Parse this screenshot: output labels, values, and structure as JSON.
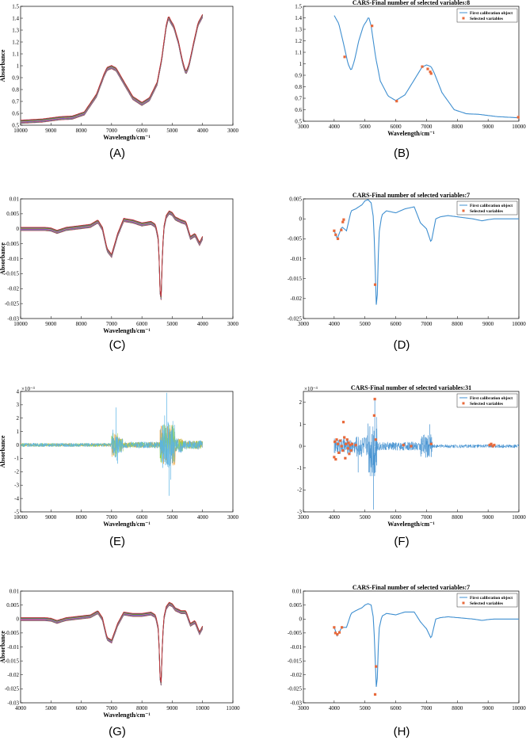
{
  "chart_data": [
    {
      "label": "(A)",
      "type": "line",
      "kind": "multi-spectra",
      "xlabel": "Wavelength/cm⁻¹",
      "ylabel": "Absorbance",
      "title": "",
      "xlim": [
        10000,
        3000
      ],
      "ylim": [
        0.5,
        1.5
      ],
      "xticks": [
        10000,
        9000,
        8000,
        7000,
        6000,
        5000,
        4000,
        3000
      ],
      "yticks": [
        0.5,
        0.6,
        0.7,
        0.8,
        0.9,
        1,
        1.1,
        1.2,
        1.3,
        1.4,
        1.5
      ],
      "x": [
        10000,
        9300,
        8700,
        8300,
        7900,
        7500,
        7250,
        7150,
        7000,
        6850,
        6600,
        6300,
        6000,
        5750,
        5500,
        5350,
        5200,
        5120,
        5050,
        4950,
        4800,
        4650,
        4550,
        4450,
        4300,
        4150,
        4000
      ],
      "values": [
        0.53,
        0.54,
        0.56,
        0.565,
        0.6,
        0.75,
        0.92,
        0.975,
        0.99,
        0.97,
        0.86,
        0.73,
        0.68,
        0.72,
        0.85,
        1.05,
        1.33,
        1.41,
        1.37,
        1.33,
        1.2,
        1.02,
        0.94,
        1.0,
        1.18,
        1.35,
        1.42
      ]
    },
    {
      "label": "(B)",
      "type": "line",
      "kind": "spectrum-selected",
      "title": "CARS-Final number of selected variables:8",
      "xlabel": "Wavelength/cm⁻¹",
      "ylabel": "",
      "xlim": [
        3000,
        10000
      ],
      "ylim": [
        0.5,
        1.5
      ],
      "xticks": [
        3000,
        4000,
        5000,
        6000,
        7000,
        8000,
        9000,
        10000
      ],
      "yticks": [
        0.5,
        0.6,
        0.7,
        0.8,
        0.9,
        1,
        1.1,
        1.2,
        1.3,
        1.4,
        1.5
      ],
      "legend": [
        "First calibration object",
        "Selected variables"
      ],
      "x": [
        4000,
        4150,
        4300,
        4450,
        4550,
        4650,
        4800,
        4950,
        5050,
        5120,
        5200,
        5350,
        5500,
        5750,
        6000,
        6300,
        6600,
        6850,
        7000,
        7150,
        7250,
        7500,
        7900,
        8300,
        8700,
        9300,
        10000
      ],
      "values": [
        1.42,
        1.35,
        1.18,
        1.0,
        0.94,
        1.02,
        1.2,
        1.33,
        1.37,
        1.41,
        1.33,
        1.05,
        0.85,
        0.72,
        0.68,
        0.73,
        0.86,
        0.97,
        0.99,
        0.975,
        0.92,
        0.75,
        0.6,
        0.565,
        0.56,
        0.54,
        0.53
      ],
      "selected": [
        [
          4340,
          1.06
        ],
        [
          5230,
          1.33
        ],
        [
          6030,
          0.675
        ],
        [
          6860,
          0.975
        ],
        [
          7040,
          0.955
        ],
        [
          7120,
          0.93
        ],
        [
          7150,
          0.915
        ],
        [
          9980,
          0.535
        ]
      ]
    },
    {
      "label": "(C)",
      "type": "line",
      "kind": "multi-spectra",
      "xlabel": "Wavelength/cm⁻¹",
      "ylabel": "Absorbance",
      "title": "",
      "xlim": [
        10000,
        3000
      ],
      "ylim": [
        -0.03,
        0.01
      ],
      "xticks": [
        10000,
        9000,
        8000,
        7000,
        6000,
        5000,
        4000,
        3000
      ],
      "yticks": [
        -0.03,
        -0.025,
        -0.02,
        -0.015,
        -0.01,
        -0.005,
        0,
        0.005,
        0.01
      ],
      "yticklabels": [
        "-0.03",
        "-0.025",
        "-0.02",
        "-0.015",
        "-0.01",
        "-0.005",
        "0",
        "0.005",
        "0.01"
      ],
      "x": [
        10000,
        9200,
        9000,
        8800,
        8500,
        7700,
        7450,
        7300,
        7150,
        7000,
        6800,
        6600,
        6300,
        6000,
        5700,
        5550,
        5450,
        5380,
        5330,
        5280,
        5200,
        5100,
        5000,
        4900,
        4700,
        4550,
        4400,
        4250,
        4100,
        4000
      ],
      "values": [
        0,
        0,
        -0.0002,
        -0.001,
        0,
        0.001,
        0.0025,
        0,
        -0.007,
        -0.009,
        -0.002,
        0.003,
        0.0025,
        0.0015,
        0.002,
        0.001,
        -0.004,
        -0.028,
        -0.01,
        0.0,
        0.004,
        0.0055,
        0.005,
        0.0035,
        0.0025,
        0.002,
        -0.003,
        -0.002,
        -0.005,
        -0.003
      ]
    },
    {
      "label": "(D)",
      "type": "line",
      "kind": "spectrum-selected",
      "title": "CARS-Final number of selected variables:7",
      "xlabel": "",
      "ylabel": "",
      "xlim": [
        3000,
        10000
      ],
      "ylim": [
        -0.025,
        0.005
      ],
      "xticks": [
        3000,
        4000,
        5000,
        6000,
        7000,
        8000,
        9000,
        10000
      ],
      "yticks": [
        -0.025,
        -0.02,
        -0.015,
        -0.01,
        -0.005,
        0,
        0.005
      ],
      "yticklabels": [
        "-0.025",
        "-0.02",
        "-0.015",
        "-0.01",
        "-0.005",
        "0",
        "0.005"
      ],
      "legend": [
        "First calibration object",
        "Selected variables"
      ],
      "x": [
        4000,
        4100,
        4250,
        4400,
        4550,
        4700,
        4900,
        5000,
        5100,
        5200,
        5280,
        5330,
        5380,
        5450,
        5550,
        5700,
        6000,
        6300,
        6600,
        6800,
        7000,
        7150,
        7300,
        7450,
        7700,
        8500,
        8800,
        9000,
        9200,
        10000
      ],
      "values": [
        -0.003,
        -0.005,
        -0.002,
        -0.003,
        0.002,
        0.0025,
        0.0035,
        0.0045,
        0.0048,
        0.004,
        0.0,
        -0.012,
        -0.025,
        -0.004,
        0.001,
        0.002,
        0.0015,
        0.0025,
        0.003,
        -0.001,
        -0.0025,
        -0.006,
        0,
        0.0005,
        0.0008,
        0,
        -0.0005,
        -0.0002,
        0,
        0
      ],
      "selected": [
        [
          4000,
          -0.003
        ],
        [
          4050,
          -0.004
        ],
        [
          4120,
          -0.005
        ],
        [
          4230,
          -0.0028
        ],
        [
          4280,
          -0.0008
        ],
        [
          4310,
          -0.0002
        ],
        [
          5330,
          -0.0165
        ]
      ]
    },
    {
      "label": "(E)",
      "type": "line",
      "kind": "noisy-multi",
      "multiplier": "×10⁻³",
      "xlabel": "Wavelength/cm⁻¹",
      "ylabel": "Absorbance",
      "title": "",
      "xlim": [
        10000,
        3000
      ],
      "ylim": [
        -5,
        4
      ],
      "xticks": [
        10000,
        9000,
        8000,
        7000,
        6000,
        5000,
        4000,
        3000
      ],
      "yticks": [
        -5,
        -4,
        -3,
        -2,
        -1,
        0,
        1,
        2,
        3,
        4
      ],
      "noise_bands": [
        [
          10000,
          7000,
          0.15
        ],
        [
          7000,
          6800,
          1.2
        ],
        [
          6800,
          6600,
          0.6
        ],
        [
          6600,
          5400,
          0.25
        ],
        [
          5400,
          4900,
          1.8
        ],
        [
          4900,
          4650,
          0.6
        ],
        [
          4650,
          4000,
          0.35
        ]
      ],
      "spikes": [
        [
          6850,
          2.8
        ],
        [
          6800,
          -1.4
        ],
        [
          5180,
          3.9
        ],
        [
          5100,
          -3.8
        ],
        [
          5250,
          2.2
        ],
        [
          5050,
          -2.6
        ]
      ]
    },
    {
      "label": "(F)",
      "type": "line",
      "kind": "noisy-selected",
      "title": "CARS-Final number of selected variables:31",
      "multiplier": "×10⁻³",
      "xlabel": "Wavelength/cm⁻¹",
      "ylabel": "",
      "xlim": [
        3000,
        10000
      ],
      "ylim": [
        -3,
        2.5
      ],
      "xticks": [
        3000,
        4000,
        5000,
        6000,
        7000,
        8000,
        9000,
        10000
      ],
      "yticks": [
        -3,
        -2,
        -1,
        0,
        1,
        2
      ],
      "legend": [
        "First calibration object",
        "Selected variables"
      ],
      "noise_bands": [
        [
          4000,
          4700,
          0.35
        ],
        [
          4700,
          5100,
          0.5
        ],
        [
          5100,
          5400,
          1.4
        ],
        [
          5400,
          6800,
          0.2
        ],
        [
          6800,
          7200,
          0.55
        ],
        [
          7200,
          10000,
          0.08
        ]
      ],
      "spikes": [
        [
          5280,
          -2.9
        ],
        [
          5320,
          2.1
        ],
        [
          4780,
          -1.2
        ],
        [
          7100,
          1.0
        ]
      ],
      "selected": [
        [
          4000,
          -0.5
        ],
        [
          4020,
          0.2
        ],
        [
          4050,
          -0.6
        ],
        [
          4080,
          0.3
        ],
        [
          4120,
          0.1
        ],
        [
          4150,
          -0.3
        ],
        [
          4200,
          0.25
        ],
        [
          4240,
          0.0
        ],
        [
          4280,
          -0.2
        ],
        [
          4300,
          1.1
        ],
        [
          4330,
          0.4
        ],
        [
          4360,
          -0.55
        ],
        [
          4380,
          0.1
        ],
        [
          4420,
          0.3
        ],
        [
          4450,
          -0.1
        ],
        [
          4470,
          0.15
        ],
        [
          4490,
          -0.35
        ],
        [
          4520,
          0.05
        ],
        [
          4550,
          -0.2
        ],
        [
          4580,
          0.1
        ],
        [
          4700,
          0.05
        ],
        [
          5300,
          1.4
        ],
        [
          5320,
          2.15
        ],
        [
          5350,
          0.3
        ],
        [
          6250,
          0.05
        ],
        [
          6500,
          0.0
        ],
        [
          7150,
          0.1
        ],
        [
          9050,
          0.05
        ],
        [
          9100,
          0.1
        ],
        [
          9150,
          0.0
        ],
        [
          9200,
          0.05
        ]
      ]
    },
    {
      "label": "(G)",
      "type": "line",
      "kind": "multi-spectra",
      "xlabel": "Wavelength/cm⁻¹",
      "ylabel": "Absorbance",
      "title": "",
      "xlim": [
        4000,
        11000
      ],
      "ylim": [
        -0.03,
        0.01
      ],
      "xticks": [
        4000,
        5000,
        6000,
        7000,
        8000,
        9000,
        10000,
        11000
      ],
      "yticks": [
        -0.03,
        -0.025,
        -0.02,
        -0.015,
        -0.01,
        -0.005,
        0,
        0.005,
        0.01
      ],
      "yticklabels": [
        "-0.03",
        "-0.025",
        "-0.02",
        "-0.015",
        "-0.01",
        "-0.005",
        "0",
        "0.005",
        "0.01"
      ],
      "x": [
        4000,
        4800,
        5000,
        5200,
        5500,
        6300,
        6550,
        6700,
        6850,
        7000,
        7200,
        7400,
        7700,
        8000,
        8300,
        8450,
        8550,
        8620,
        8670,
        8720,
        8800,
        8900,
        9000,
        9100,
        9300,
        9450,
        9600,
        9750,
        9900,
        10000
      ],
      "values": [
        0,
        0,
        -0.0002,
        -0.001,
        0,
        0.001,
        0.0025,
        0,
        -0.007,
        -0.008,
        -0.002,
        0.002,
        0.0015,
        0.0015,
        0.002,
        0.001,
        -0.004,
        -0.028,
        -0.01,
        0.0,
        0.004,
        0.0055,
        0.005,
        0.0035,
        0.0025,
        0.0025,
        -0.002,
        -0.001,
        -0.005,
        -0.003
      ]
    },
    {
      "label": "(H)",
      "type": "line",
      "kind": "spectrum-selected",
      "title": "CARS-Final number of selected variables:7",
      "xlabel": "",
      "ylabel": "",
      "xlim": [
        3000,
        10000
      ],
      "ylim": [
        -0.03,
        0.01
      ],
      "xticks": [
        3000,
        4000,
        5000,
        6000,
        7000,
        8000,
        9000,
        10000
      ],
      "yticks": [
        -0.03,
        -0.025,
        -0.02,
        -0.015,
        -0.01,
        -0.005,
        0,
        0.005,
        0.01
      ],
      "yticklabels": [
        "-0.03",
        "-0.025",
        "-0.02",
        "-0.015",
        "-0.01",
        "-0.005",
        "0",
        "0.005",
        "0.01"
      ],
      "legend": [
        "First calibration object",
        "Selected variables"
      ],
      "x": [
        4000,
        4100,
        4250,
        4400,
        4550,
        4700,
        4900,
        5000,
        5100,
        5200,
        5280,
        5330,
        5380,
        5450,
        5550,
        5700,
        6000,
        6300,
        6600,
        6800,
        7000,
        7150,
        7300,
        7450,
        7700,
        8500,
        8800,
        9000,
        9200,
        10000
      ],
      "values": [
        -0.003,
        -0.006,
        -0.003,
        -0.003,
        0.002,
        0.003,
        0.004,
        0.005,
        0.0055,
        0.005,
        0.0,
        -0.014,
        -0.028,
        -0.004,
        0.001,
        0.002,
        0.0015,
        0.0025,
        0.0025,
        -0.001,
        -0.0035,
        -0.007,
        0,
        0.0005,
        0.0008,
        0,
        -0.0005,
        -0.0002,
        0,
        0
      ],
      "selected": [
        [
          4000,
          -0.003
        ],
        [
          4040,
          -0.005
        ],
        [
          4100,
          -0.0055
        ],
        [
          4170,
          -0.0048
        ],
        [
          4250,
          -0.003
        ],
        [
          5330,
          -0.027
        ],
        [
          5360,
          -0.017
        ]
      ]
    }
  ]
}
